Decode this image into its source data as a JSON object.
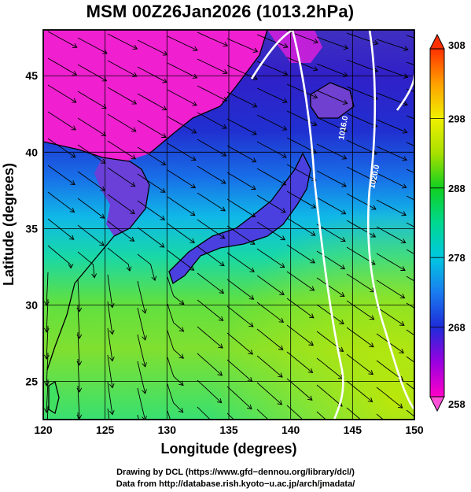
{
  "title": "MSM 00Z26Jan2026 (1013.2hPa)",
  "map": {
    "xlabel": "Longitude (degrees)",
    "ylabel": "Latitude  (degrees)",
    "lon_range": [
      120,
      150
    ],
    "lat_range": [
      22.5,
      48
    ],
    "lon_ticks": [
      120,
      125,
      130,
      135,
      140,
      145,
      150
    ],
    "lat_ticks": [
      25,
      30,
      35,
      40,
      45
    ],
    "grid": true,
    "field": "temperature (K) shaded with wind streamlines",
    "isobars": [
      {
        "label": "1016.0",
        "color": "#ffffff"
      },
      {
        "label": "1020.0",
        "color": "#ffffff"
      }
    ]
  },
  "colorbar": {
    "min": 258,
    "max": 308,
    "ticks": [
      258,
      268,
      278,
      288,
      298,
      308
    ],
    "colors": [
      "#ff00c8",
      "#9a00e0",
      "#1e2cd8",
      "#1a7cf0",
      "#00c8e0",
      "#00d890",
      "#10d020",
      "#a8e000",
      "#f0f000",
      "#ffa000",
      "#ff3000"
    ]
  },
  "credits": {
    "line1": "Drawing by DCL (https://www.gfd−dennou.org/library/dcl/)",
    "line2": "Data from http://database.rish.kyoto−u.ac.jp/arch/jmadata/"
  }
}
